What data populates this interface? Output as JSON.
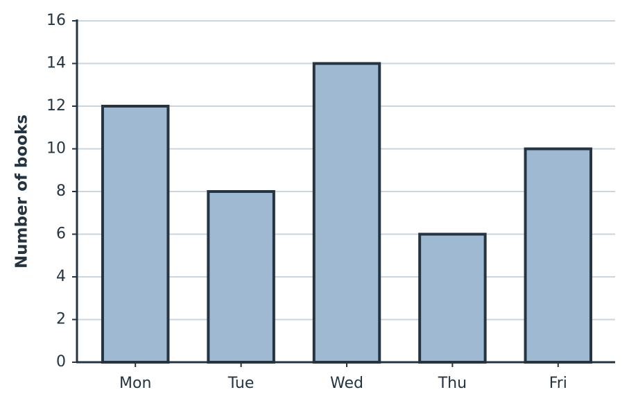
{
  "chart_data": {
    "type": "bar",
    "y_label": "Number of books",
    "categories": [
      "Mon",
      "Tue",
      "Wed",
      "Thu",
      "Fri"
    ],
    "values": [
      12,
      8,
      14,
      6,
      10
    ],
    "color": "#a0b9d2",
    "edge_color": "#243441",
    "ylim": [
      0,
      16
    ],
    "yticks": [
      0,
      2,
      4,
      6,
      8,
      10,
      12,
      14,
      16
    ],
    "grid": true
  }
}
